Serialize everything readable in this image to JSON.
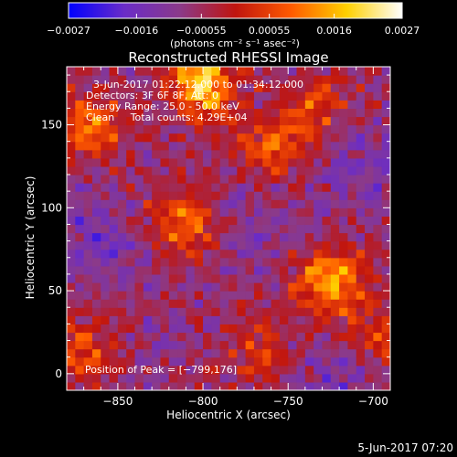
{
  "chart_data": {
    "type": "heatmap",
    "title": "Reconstructed RHESSI Image",
    "xlabel": "Heliocentric X (arcsec)",
    "ylabel": "Heliocentric Y (arcsec)",
    "xlim": [
      -880,
      -690
    ],
    "ylim": [
      -10,
      185
    ],
    "x_ticks": [
      -850,
      -800,
      -750,
      -700
    ],
    "y_ticks": [
      0,
      50,
      100,
      150
    ],
    "x_tick_labels": [
      "−850",
      "−800",
      "−750",
      "−700"
    ],
    "y_tick_labels": [
      "0",
      "50",
      "100",
      "150"
    ],
    "colorbar": {
      "range": [
        -0.0027,
        0.0027
      ],
      "ticks": [
        -0.0027,
        -0.0016,
        -0.00055,
        0.00055,
        0.0016,
        0.0027
      ],
      "tick_labels": [
        "−0.0027",
        "−0.0016",
        "−0.00055",
        "0.00055",
        "0.0016",
        "0.0027"
      ],
      "unit_label": "(photons cm⁻² s⁻¹ asec⁻²)",
      "colors": [
        "#0000ff",
        "#6a2cc8",
        "#8b3a8a",
        "#c0150f",
        "#ff5a00",
        "#ffd000",
        "#ffffff"
      ]
    },
    "annotations": [
      "3-Jun-2017 01:22:12.000 to 01:34:12.000",
      "Detectors: 3F 6F 8F, Att: 0",
      "Energy Range: 25.0 - 50.0 keV",
      "Clean     Total counts: 4.29E+04"
    ],
    "peak_label": "Position of Peak = [−799,176]",
    "peak_position": [
      -799,
      176
    ],
    "sources": [
      {
        "x": -800,
        "y": 176,
        "value": 0.0027
      },
      {
        "x": -725,
        "y": 55,
        "value": 0.0022
      },
      {
        "x": -812,
        "y": 92,
        "value": 0.0019
      },
      {
        "x": -868,
        "y": 150,
        "value": 0.0016
      },
      {
        "x": -760,
        "y": 135,
        "value": 0.0014
      },
      {
        "x": -868,
        "y": 15,
        "value": 0.0012
      },
      {
        "x": -735,
        "y": 160,
        "value": 0.0011
      },
      {
        "x": -770,
        "y": 15,
        "value": 0.001
      },
      {
        "x": -700,
        "y": 20,
        "value": 0.0011
      }
    ],
    "minima": [
      {
        "x": -860,
        "y": 80,
        "value": -0.002
      },
      {
        "x": -705,
        "y": 125,
        "value": -0.0017
      },
      {
        "x": -715,
        "y": 0,
        "value": -0.0018
      },
      {
        "x": -820,
        "y": 20,
        "value": -0.0012
      },
      {
        "x": -795,
        "y": 100,
        "value": -0.0011
      },
      {
        "x": -760,
        "y": 95,
        "value": -0.0013
      }
    ]
  },
  "footer": {
    "date": "5-Jun-2017 07:20"
  }
}
